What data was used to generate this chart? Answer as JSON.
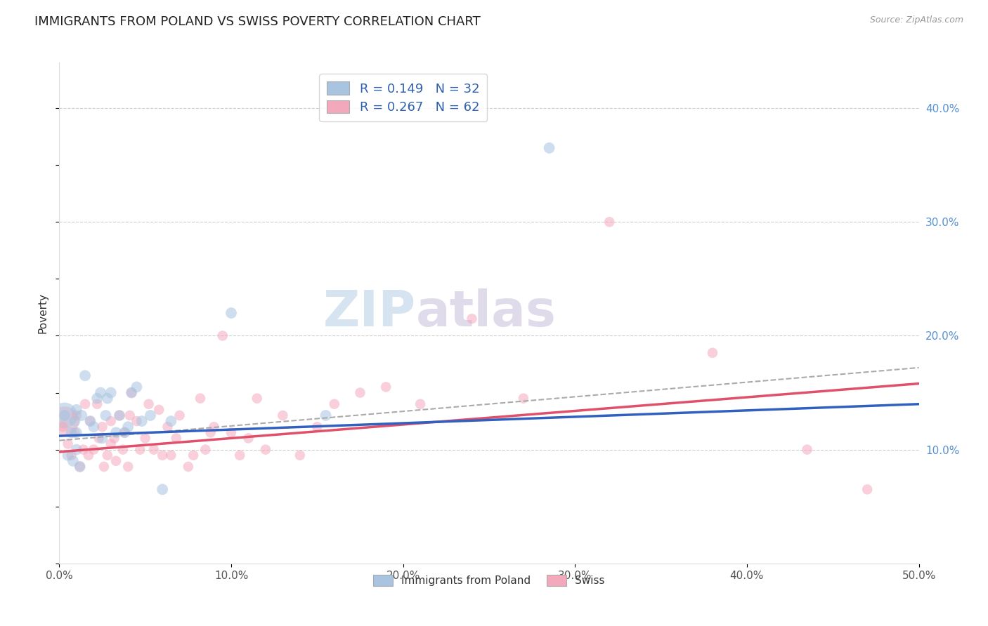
{
  "title": "IMMIGRANTS FROM POLAND VS SWISS POVERTY CORRELATION CHART",
  "source": "Source: ZipAtlas.com",
  "ylabel": "Poverty",
  "xlim": [
    0.0,
    0.5
  ],
  "ylim": [
    0.0,
    0.44
  ],
  "ytick_values": [
    0.1,
    0.2,
    0.3,
    0.4
  ],
  "ytick_labels": [
    "10.0%",
    "20.0%",
    "30.0%",
    "40.0%"
  ],
  "xtick_values": [
    0.0,
    0.1,
    0.2,
    0.3,
    0.4,
    0.5
  ],
  "xtick_labels": [
    "0.0%",
    "10.0%",
    "20.0%",
    "30.0%",
    "40.0%",
    "50.0%"
  ],
  "legend_blue_label": "R = 0.149   N = 32",
  "legend_pink_label": "R = 0.267   N = 62",
  "blue_color": "#a8c4e0",
  "pink_color": "#f4a8bc",
  "blue_line_color": "#3060c0",
  "pink_line_color": "#e0506a",
  "watermark_left": "ZIP",
  "watermark_right": "atlas",
  "blue_scatter_x": [
    0.003,
    0.005,
    0.007,
    0.008,
    0.009,
    0.01,
    0.01,
    0.01,
    0.012,
    0.013,
    0.015,
    0.018,
    0.02,
    0.022,
    0.024,
    0.025,
    0.027,
    0.028,
    0.03,
    0.033,
    0.035,
    0.038,
    0.04,
    0.042,
    0.045,
    0.048,
    0.053,
    0.06,
    0.065,
    0.1,
    0.155,
    0.285
  ],
  "blue_scatter_y": [
    0.13,
    0.095,
    0.115,
    0.09,
    0.125,
    0.135,
    0.1,
    0.115,
    0.085,
    0.13,
    0.165,
    0.125,
    0.12,
    0.145,
    0.15,
    0.11,
    0.13,
    0.145,
    0.15,
    0.115,
    0.13,
    0.115,
    0.12,
    0.15,
    0.155,
    0.125,
    0.13,
    0.065,
    0.125,
    0.22,
    0.13,
    0.365
  ],
  "pink_scatter_x": [
    0.002,
    0.005,
    0.007,
    0.009,
    0.01,
    0.012,
    0.014,
    0.015,
    0.017,
    0.018,
    0.02,
    0.022,
    0.023,
    0.025,
    0.026,
    0.028,
    0.03,
    0.03,
    0.032,
    0.033,
    0.035,
    0.037,
    0.038,
    0.04,
    0.041,
    0.042,
    0.045,
    0.047,
    0.05,
    0.052,
    0.055,
    0.058,
    0.06,
    0.063,
    0.065,
    0.068,
    0.07,
    0.075,
    0.078,
    0.082,
    0.085,
    0.088,
    0.09,
    0.095,
    0.1,
    0.105,
    0.11,
    0.115,
    0.12,
    0.13,
    0.14,
    0.15,
    0.16,
    0.175,
    0.19,
    0.21,
    0.24,
    0.27,
    0.32,
    0.38,
    0.435,
    0.47
  ],
  "pink_scatter_y": [
    0.12,
    0.105,
    0.095,
    0.115,
    0.13,
    0.085,
    0.1,
    0.14,
    0.095,
    0.125,
    0.1,
    0.14,
    0.11,
    0.12,
    0.085,
    0.095,
    0.105,
    0.125,
    0.11,
    0.09,
    0.13,
    0.1,
    0.115,
    0.085,
    0.13,
    0.15,
    0.125,
    0.1,
    0.11,
    0.14,
    0.1,
    0.135,
    0.095,
    0.12,
    0.095,
    0.11,
    0.13,
    0.085,
    0.095,
    0.145,
    0.1,
    0.115,
    0.12,
    0.2,
    0.115,
    0.095,
    0.11,
    0.145,
    0.1,
    0.13,
    0.095,
    0.12,
    0.14,
    0.15,
    0.155,
    0.14,
    0.215,
    0.145,
    0.3,
    0.185,
    0.1,
    0.065
  ],
  "large_pink_x": [
    0.003
  ],
  "large_pink_y": [
    0.125
  ],
  "large_pink_size": 900,
  "blue_line_y_start": 0.112,
  "blue_line_y_end": 0.14,
  "pink_line_y_start": 0.098,
  "pink_line_y_end": 0.158,
  "dashed_line_y_start": 0.108,
  "dashed_line_y_end": 0.172,
  "background_color": "#ffffff",
  "grid_color": "#cccccc",
  "title_fontsize": 13,
  "axis_label_fontsize": 11,
  "tick_fontsize": 11,
  "legend_fontsize": 13,
  "scatter_size_blue": 130,
  "scatter_size_pink": 110,
  "scatter_alpha": 0.55
}
